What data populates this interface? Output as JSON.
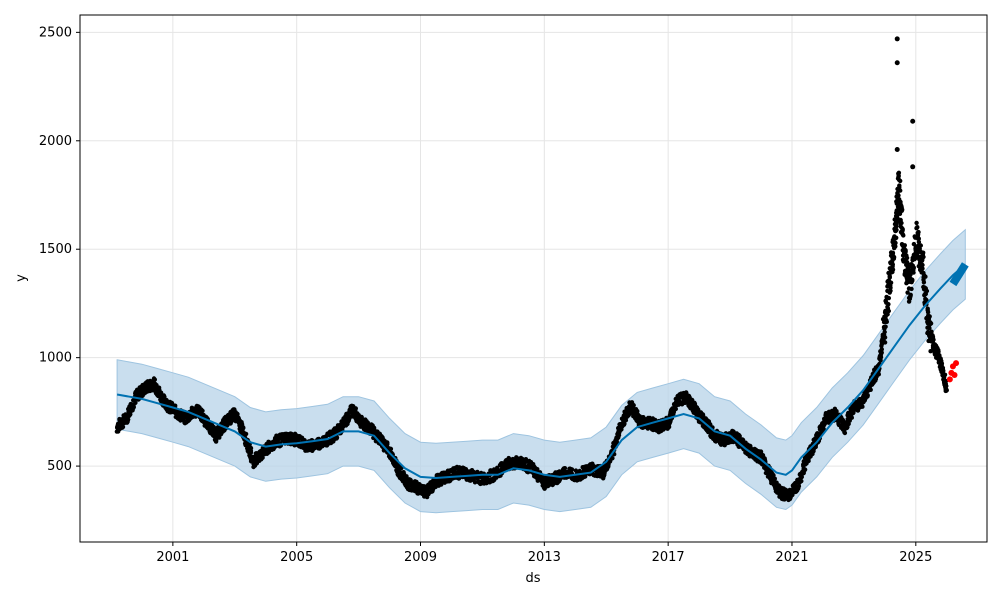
{
  "chart_data": {
    "type": "line",
    "xlabel": "ds",
    "ylabel": "y",
    "xlim": [
      1998.0,
      2027.3
    ],
    "ylim": [
      150,
      2580
    ],
    "grid": true,
    "x_ticks": [
      2001,
      2005,
      2009,
      2013,
      2017,
      2021,
      2025
    ],
    "x_tick_labels": [
      "2001",
      "2005",
      "2009",
      "2013",
      "2017",
      "2021",
      "2025"
    ],
    "y_ticks": [
      500,
      1000,
      1500,
      2000,
      2500
    ],
    "y_tick_labels": [
      "500",
      "1000",
      "1500",
      "2000",
      "2500"
    ],
    "colors": {
      "forecast_line": "#0072b2",
      "uncertainty_band": "#b7d3e8",
      "observed_points": "#000000",
      "holdout_points": "#ff0000",
      "grid": "#e5e5e5"
    },
    "series": [
      {
        "kind": "forecast",
        "points": [
          [
            1999.2,
            830
          ],
          [
            1999.6,
            820
          ],
          [
            2000.0,
            810
          ],
          [
            2000.5,
            790
          ],
          [
            2001.0,
            770
          ],
          [
            2001.5,
            750
          ],
          [
            2002.0,
            720
          ],
          [
            2002.5,
            690
          ],
          [
            2003.0,
            660
          ],
          [
            2003.5,
            610
          ],
          [
            2004.0,
            590
          ],
          [
            2004.5,
            600
          ],
          [
            2005.0,
            605
          ],
          [
            2005.5,
            615
          ],
          [
            2006.0,
            625
          ],
          [
            2006.5,
            660
          ],
          [
            2007.0,
            660
          ],
          [
            2007.5,
            640
          ],
          [
            2008.0,
            560
          ],
          [
            2008.5,
            490
          ],
          [
            2009.0,
            450
          ],
          [
            2009.5,
            445
          ],
          [
            2010.0,
            450
          ],
          [
            2010.5,
            455
          ],
          [
            2011.0,
            460
          ],
          [
            2011.5,
            460
          ],
          [
            2012.0,
            490
          ],
          [
            2012.5,
            480
          ],
          [
            2013.0,
            460
          ],
          [
            2013.5,
            450
          ],
          [
            2014.0,
            460
          ],
          [
            2014.5,
            470
          ],
          [
            2015.0,
            520
          ],
          [
            2015.5,
            620
          ],
          [
            2016.0,
            680
          ],
          [
            2016.5,
            700
          ],
          [
            2017.0,
            720
          ],
          [
            2017.5,
            740
          ],
          [
            2018.0,
            720
          ],
          [
            2018.5,
            660
          ],
          [
            2019.0,
            640
          ],
          [
            2019.5,
            580
          ],
          [
            2020.0,
            530
          ],
          [
            2020.5,
            470
          ],
          [
            2020.8,
            460
          ],
          [
            2021.0,
            480
          ],
          [
            2021.3,
            540
          ],
          [
            2021.8,
            610
          ],
          [
            2022.3,
            700
          ],
          [
            2022.8,
            770
          ],
          [
            2023.3,
            850
          ],
          [
            2023.8,
            950
          ],
          [
            2024.3,
            1050
          ],
          [
            2024.8,
            1150
          ],
          [
            2025.3,
            1240
          ],
          [
            2025.8,
            1320
          ],
          [
            2026.2,
            1380
          ],
          [
            2026.6,
            1430
          ]
        ],
        "band_half_width": 160
      },
      {
        "kind": "observed",
        "points": [
          [
            1999.2,
            680
          ],
          [
            1999.5,
            720
          ],
          [
            1999.8,
            820
          ],
          [
            2000.1,
            860
          ],
          [
            2000.4,
            880
          ],
          [
            2000.7,
            800
          ],
          [
            2001.0,
            760
          ],
          [
            2001.4,
            720
          ],
          [
            2001.8,
            760
          ],
          [
            2002.1,
            700
          ],
          [
            2002.4,
            640
          ],
          [
            2002.7,
            700
          ],
          [
            2003.0,
            740
          ],
          [
            2003.3,
            650
          ],
          [
            2003.6,
            520
          ],
          [
            2003.9,
            560
          ],
          [
            2004.3,
            610
          ],
          [
            2004.7,
            630
          ],
          [
            2005.0,
            620
          ],
          [
            2005.4,
            590
          ],
          [
            2005.8,
            610
          ],
          [
            2006.2,
            640
          ],
          [
            2006.5,
            690
          ],
          [
            2006.8,
            760
          ],
          [
            2007.1,
            700
          ],
          [
            2007.4,
            670
          ],
          [
            2007.7,
            620
          ],
          [
            2008.0,
            570
          ],
          [
            2008.3,
            480
          ],
          [
            2008.6,
            420
          ],
          [
            2008.9,
            400
          ],
          [
            2009.2,
            380
          ],
          [
            2009.5,
            430
          ],
          [
            2009.8,
            450
          ],
          [
            2010.2,
            470
          ],
          [
            2010.6,
            460
          ],
          [
            2011.0,
            440
          ],
          [
            2011.4,
            460
          ],
          [
            2011.8,
            510
          ],
          [
            2012.2,
            520
          ],
          [
            2012.6,
            490
          ],
          [
            2013.0,
            420
          ],
          [
            2013.3,
            440
          ],
          [
            2013.7,
            470
          ],
          [
            2014.1,
            460
          ],
          [
            2014.5,
            490
          ],
          [
            2014.9,
            470
          ],
          [
            2015.2,
            560
          ],
          [
            2015.5,
            700
          ],
          [
            2015.8,
            780
          ],
          [
            2016.1,
            700
          ],
          [
            2016.4,
            700
          ],
          [
            2016.7,
            680
          ],
          [
            2017.0,
            700
          ],
          [
            2017.3,
            800
          ],
          [
            2017.6,
            820
          ],
          [
            2017.9,
            750
          ],
          [
            2018.2,
            700
          ],
          [
            2018.5,
            640
          ],
          [
            2018.8,
            620
          ],
          [
            2019.1,
            640
          ],
          [
            2019.4,
            600
          ],
          [
            2019.7,
            560
          ],
          [
            2020.0,
            540
          ],
          [
            2020.3,
            460
          ],
          [
            2020.6,
            380
          ],
          [
            2020.9,
            360
          ],
          [
            2021.2,
            420
          ],
          [
            2021.5,
            540
          ],
          [
            2021.8,
            620
          ],
          [
            2022.1,
            720
          ],
          [
            2022.4,
            740
          ],
          [
            2022.7,
            680
          ],
          [
            2023.0,
            770
          ],
          [
            2023.3,
            800
          ],
          [
            2023.6,
            900
          ],
          [
            2023.8,
            950
          ],
          [
            2024.0,
            1150
          ],
          [
            2024.2,
            1400
          ],
          [
            2024.35,
            1600
          ],
          [
            2024.45,
            1800
          ],
          [
            2024.6,
            1500
          ],
          [
            2024.8,
            1300
          ],
          [
            2025.0,
            1550
          ],
          [
            2025.2,
            1450
          ],
          [
            2025.4,
            1150
          ],
          [
            2025.6,
            1050
          ],
          [
            2025.8,
            980
          ],
          [
            2026.0,
            850
          ]
        ],
        "spikes": [
          [
            2024.4,
            2470
          ],
          [
            2024.4,
            2360
          ],
          [
            2024.4,
            1960
          ],
          [
            2024.9,
            2090
          ],
          [
            2024.9,
            1880
          ]
        ]
      },
      {
        "kind": "holdout",
        "points": [
          [
            2026.1,
            900
          ],
          [
            2026.15,
            930
          ],
          [
            2026.2,
            960
          ],
          [
            2026.25,
            920
          ],
          [
            2026.3,
            975
          ]
        ]
      }
    ]
  }
}
